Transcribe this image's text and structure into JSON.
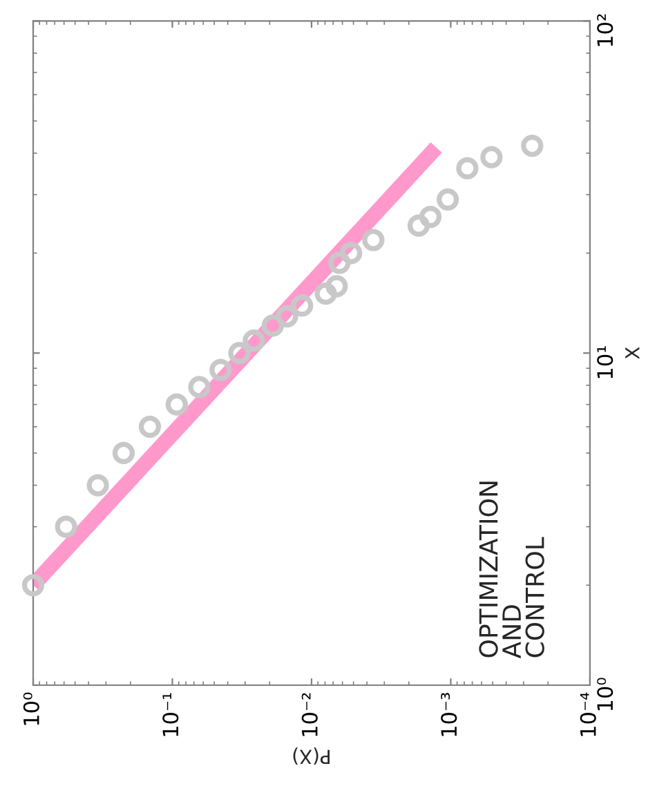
{
  "chart_data": {
    "type": "scatter",
    "xlabel": "P(X)",
    "ylabel": "X",
    "log": "xy",
    "xlim": [
      1,
      0.0001
    ],
    "ylim": [
      1,
      100
    ],
    "xticks": [
      {
        "value": 1,
        "label": "10⁰"
      },
      {
        "value": 0.1,
        "label": "10⁻¹"
      },
      {
        "value": 0.01,
        "label": "10⁻²"
      },
      {
        "value": 0.001,
        "label": "10⁻³"
      },
      {
        "value": 0.0001,
        "label": "10⁻⁴"
      }
    ],
    "yticks": [
      {
        "value": 1,
        "label": "10⁰"
      },
      {
        "value": 10,
        "label": "10¹"
      },
      {
        "value": 100,
        "label": "10²"
      }
    ],
    "legend": false,
    "annotations": [
      "OPTIMIZATION\nAND\nCONTROL"
    ],
    "series": [
      {
        "type": "line",
        "color": "#ff99cc",
        "x": [
          1,
          0.00127
        ],
        "values": [
          2,
          41.6
        ]
      },
      {
        "marker": "circle",
        "color": "#c8c8c8",
        "x": [
          1,
          0.58,
          0.343,
          0.224,
          0.145,
          0.093,
          0.064,
          0.045,
          0.033,
          0.026,
          0.019,
          0.015,
          0.0117,
          0.0079,
          0.0066,
          0.0063,
          0.0052,
          0.0036,
          0.0017,
          0.0014,
          0.00105,
          0.00076,
          0.00051,
          0.00026
        ],
        "values": [
          2,
          3,
          4,
          5,
          6,
          7,
          7.9,
          8.9,
          10,
          10.9,
          12.1,
          12.9,
          13.9,
          15.1,
          15.9,
          18.7,
          20,
          21.9,
          24.2,
          25.7,
          29,
          36,
          38.9,
          42.1
        ]
      }
    ]
  }
}
